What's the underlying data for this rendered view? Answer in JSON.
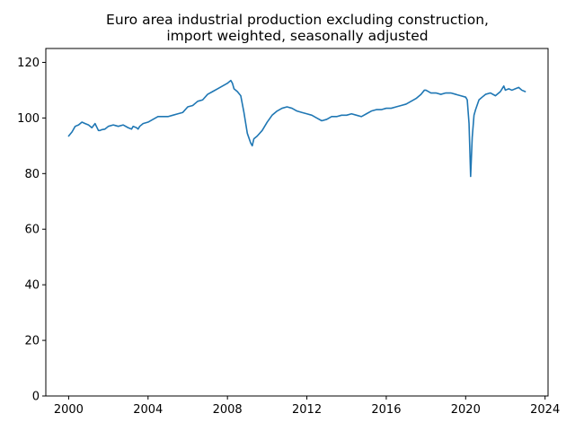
{
  "chart_data": {
    "type": "line",
    "title": [
      "Euro area industrial production excluding construction,",
      "import weighted, seasonally adjusted"
    ],
    "xlabel": "",
    "ylabel": "",
    "xlim": [
      1998.85,
      2024.15
    ],
    "ylim": [
      0,
      125
    ],
    "x_ticks": [
      2000,
      2004,
      2008,
      2012,
      2016,
      2020,
      2024
    ],
    "y_ticks": [
      0,
      20,
      40,
      60,
      80,
      100,
      120
    ],
    "grid": false,
    "legend": "none",
    "color": "#1f77b4",
    "series": [
      {
        "x": [
          2000.0,
          2000.17,
          2000.33,
          2000.5,
          2000.67,
          2000.83,
          2001.0,
          2001.17,
          2001.33,
          2001.5,
          2001.58,
          2001.67,
          2001.83,
          2002.0,
          2002.25,
          2002.5,
          2002.75,
          2003.0,
          2003.17,
          2003.25,
          2003.42,
          2003.5,
          2003.58,
          2003.75,
          2004.0,
          2004.25,
          2004.5,
          2004.75,
          2005.0,
          2005.25,
          2005.5,
          2005.75,
          2006.0,
          2006.25,
          2006.5,
          2006.75,
          2007.0,
          2007.25,
          2007.5,
          2007.75,
          2008.0,
          2008.17,
          2008.25,
          2008.33,
          2008.5,
          2008.67,
          2008.83,
          2009.0,
          2009.17,
          2009.25,
          2009.33,
          2009.5,
          2009.75,
          2010.0,
          2010.25,
          2010.5,
          2010.75,
          2011.0,
          2011.25,
          2011.5,
          2011.75,
          2012.0,
          2012.25,
          2012.5,
          2012.75,
          2013.0,
          2013.25,
          2013.5,
          2013.75,
          2014.0,
          2014.25,
          2014.5,
          2014.75,
          2015.0,
          2015.25,
          2015.5,
          2015.75,
          2016.0,
          2016.25,
          2016.5,
          2016.75,
          2017.0,
          2017.25,
          2017.5,
          2017.75,
          2017.92,
          2018.0,
          2018.25,
          2018.5,
          2018.75,
          2019.0,
          2019.25,
          2019.5,
          2019.75,
          2020.0,
          2020.08,
          2020.17,
          2020.25,
          2020.33,
          2020.42,
          2020.5,
          2020.67,
          2020.83,
          2021.0,
          2021.25,
          2021.5,
          2021.75,
          2021.92,
          2022.0,
          2022.17,
          2022.33,
          2022.5,
          2022.67,
          2022.83,
          2023.0
        ],
        "values": [
          93.5,
          95.0,
          97.0,
          97.5,
          98.5,
          98.0,
          97.5,
          96.5,
          98.0,
          95.5,
          95.5,
          95.8,
          96.0,
          97.0,
          97.5,
          97.0,
          97.5,
          96.5,
          96.0,
          97.0,
          96.5,
          96.0,
          97.0,
          98.0,
          98.5,
          99.5,
          100.5,
          100.5,
          100.5,
          101.0,
          101.5,
          102.0,
          104.0,
          104.5,
          106.0,
          106.5,
          108.5,
          109.5,
          110.5,
          111.5,
          112.5,
          113.5,
          112.5,
          110.5,
          109.5,
          108.0,
          102.0,
          94.5,
          91.0,
          90.0,
          92.5,
          93.5,
          95.5,
          98.5,
          101.0,
          102.5,
          103.5,
          104.0,
          103.5,
          102.5,
          102.0,
          101.5,
          101.0,
          100.0,
          99.0,
          99.5,
          100.5,
          100.5,
          101.0,
          101.0,
          101.5,
          101.0,
          100.5,
          101.5,
          102.5,
          103.0,
          103.0,
          103.5,
          103.5,
          104.0,
          104.5,
          105.0,
          106.0,
          107.0,
          108.5,
          110.0,
          110.0,
          109.0,
          109.0,
          108.5,
          109.0,
          109.0,
          108.5,
          108.0,
          107.5,
          106.5,
          98.0,
          79.0,
          93.0,
          101.0,
          103.0,
          106.5,
          107.5,
          108.5,
          109.0,
          108.0,
          109.5,
          111.5,
          110.0,
          110.5,
          110.0,
          110.5,
          111.0,
          110.0,
          109.5
        ]
      }
    ]
  }
}
